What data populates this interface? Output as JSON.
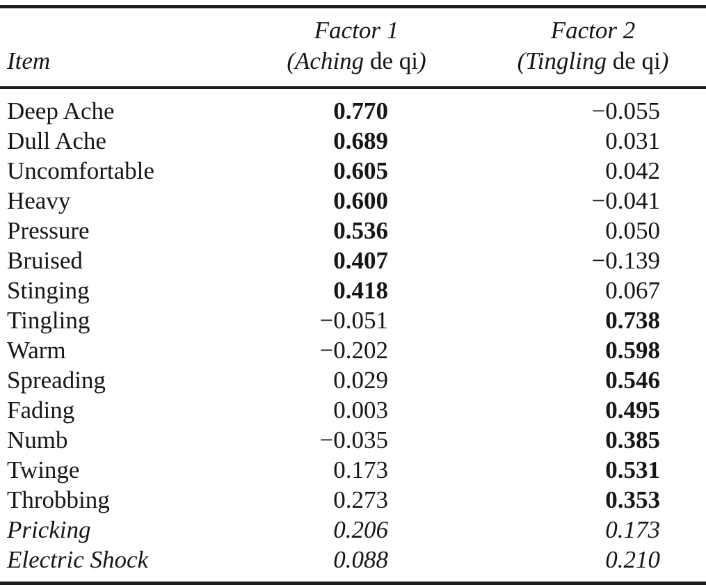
{
  "table": {
    "header": {
      "item": "Item",
      "factor1": {
        "title": "Factor 1",
        "sub_italic_open": "(Aching",
        "sub_roman": " de qi",
        "sub_italic_close": ")"
      },
      "factor2": {
        "title": "Factor 2",
        "sub_italic_open": "(Tingling",
        "sub_roman": " de qi",
        "sub_italic_close": ")"
      }
    },
    "rows": [
      {
        "item": "Deep Ache",
        "f1": "0.770",
        "f2": "−0.055",
        "f1_bold": true,
        "f2_bold": false,
        "italic": false
      },
      {
        "item": "Dull Ache",
        "f1": "0.689",
        "f2": "0.031",
        "f1_bold": true,
        "f2_bold": false,
        "italic": false
      },
      {
        "item": "Uncomfortable",
        "f1": "0.605",
        "f2": "0.042",
        "f1_bold": true,
        "f2_bold": false,
        "italic": false
      },
      {
        "item": "Heavy",
        "f1": "0.600",
        "f2": "−0.041",
        "f1_bold": true,
        "f2_bold": false,
        "italic": false
      },
      {
        "item": "Pressure",
        "f1": "0.536",
        "f2": "0.050",
        "f1_bold": true,
        "f2_bold": false,
        "italic": false
      },
      {
        "item": "Bruised",
        "f1": "0.407",
        "f2": "−0.139",
        "f1_bold": true,
        "f2_bold": false,
        "italic": false
      },
      {
        "item": "Stinging",
        "f1": "0.418",
        "f2": "0.067",
        "f1_bold": true,
        "f2_bold": false,
        "italic": false
      },
      {
        "item": "Tingling",
        "f1": "−0.051",
        "f2": "0.738",
        "f1_bold": false,
        "f2_bold": true,
        "italic": false
      },
      {
        "item": "Warm",
        "f1": "−0.202",
        "f2": "0.598",
        "f1_bold": false,
        "f2_bold": true,
        "italic": false
      },
      {
        "item": "Spreading",
        "f1": "0.029",
        "f2": "0.546",
        "f1_bold": false,
        "f2_bold": true,
        "italic": false
      },
      {
        "item": "Fading",
        "f1": "0.003",
        "f2": "0.495",
        "f1_bold": false,
        "f2_bold": true,
        "italic": false
      },
      {
        "item": "Numb",
        "f1": "−0.035",
        "f2": "0.385",
        "f1_bold": false,
        "f2_bold": true,
        "italic": false
      },
      {
        "item": "Twinge",
        "f1": "0.173",
        "f2": "0.531",
        "f1_bold": false,
        "f2_bold": true,
        "italic": false
      },
      {
        "item": "Throbbing",
        "f1": "0.273",
        "f2": "0.353",
        "f1_bold": false,
        "f2_bold": true,
        "italic": false
      },
      {
        "item": "Pricking",
        "f1": "0.206",
        "f2": "0.173",
        "f1_bold": false,
        "f2_bold": false,
        "italic": true
      },
      {
        "item": "Electric Shock",
        "f1": "0.088",
        "f2": "0.210",
        "f1_bold": false,
        "f2_bold": false,
        "italic": true
      }
    ]
  },
  "colors": {
    "text": "#161616",
    "rule": "#1c1c1c",
    "background": "#ffffff"
  }
}
